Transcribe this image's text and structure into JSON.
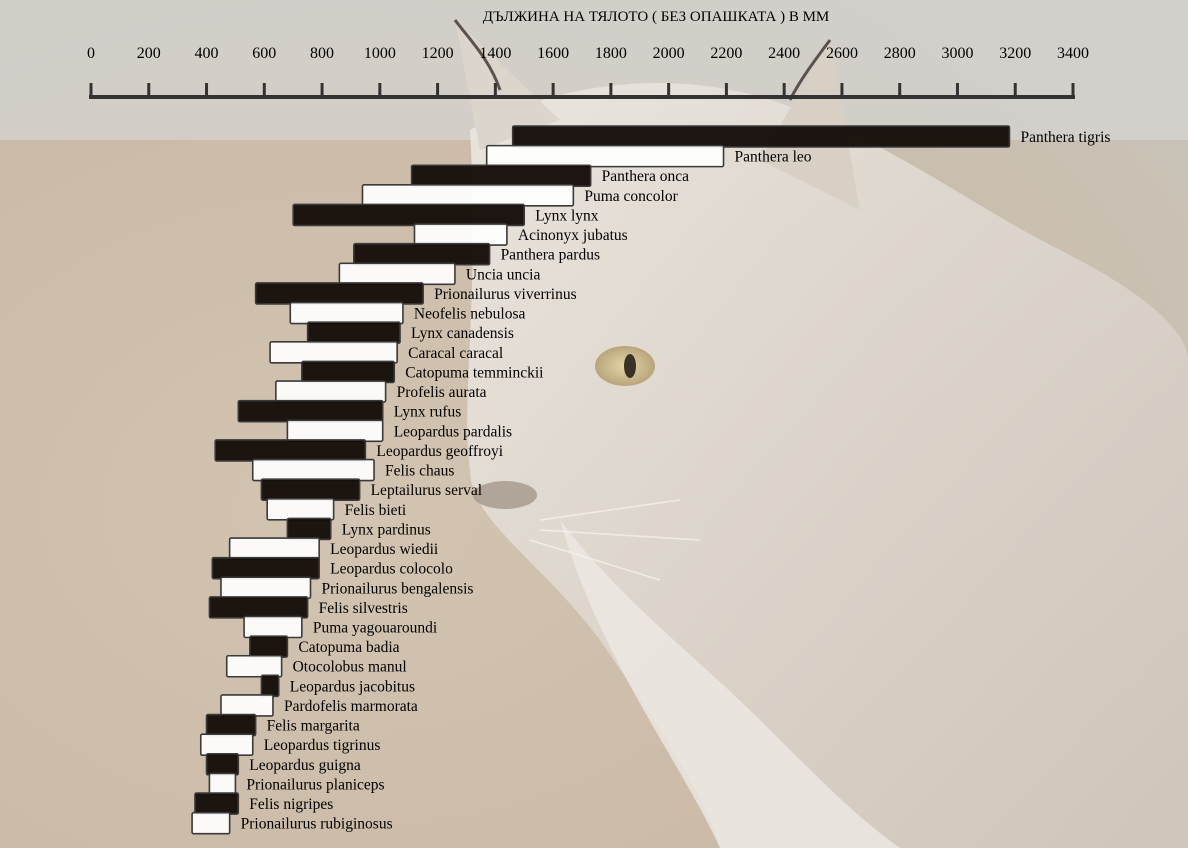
{
  "chart_data": {
    "type": "bar",
    "orientation": "horizontal-range",
    "title": "ДЪЛЖИНА НА ТЯЛОТО ( БЕЗ ОПАШКАТА ) В ММ",
    "axis": {
      "position": "top",
      "xlim": [
        0,
        3400
      ],
      "ticks": [
        0,
        200,
        400,
        600,
        800,
        1000,
        1200,
        1400,
        1600,
        1800,
        2000,
        2200,
        2400,
        2600,
        2800,
        3000,
        3200,
        3400
      ],
      "tick_labels": [
        "0",
        "200",
        "400",
        "600",
        "800",
        "1000",
        "1200",
        "1400",
        "1600",
        "1800",
        "2000",
        "2200",
        "2400",
        "2600",
        "2800",
        "3000",
        "3200",
        "3400"
      ]
    },
    "colors": {
      "dark_bar": "#140c08",
      "light_bar": "#ffffff",
      "bar_edge": "#3a3a3a",
      "text": "#000000"
    },
    "series_style": "alternating dark / light range bars, label to the right of each bar",
    "species": [
      {
        "name": "Panthera tigris",
        "min": 1460,
        "max": 3180,
        "fill": "dark"
      },
      {
        "name": "Panthera leo",
        "min": 1370,
        "max": 2190,
        "fill": "light"
      },
      {
        "name": "Panthera onca",
        "min": 1110,
        "max": 1730,
        "fill": "dark"
      },
      {
        "name": "Puma concolor",
        "min": 940,
        "max": 1670,
        "fill": "light"
      },
      {
        "name": "Lynx lynx",
        "min": 700,
        "max": 1500,
        "fill": "dark"
      },
      {
        "name": "Acinonyx jubatus",
        "min": 1120,
        "max": 1440,
        "fill": "light"
      },
      {
        "name": "Panthera pardus",
        "min": 910,
        "max": 1380,
        "fill": "dark"
      },
      {
        "name": "Uncia uncia",
        "min": 860,
        "max": 1260,
        "fill": "light"
      },
      {
        "name": "Prionailurus viverrinus",
        "min": 570,
        "max": 1150,
        "fill": "dark"
      },
      {
        "name": "Neofelis nebulosa",
        "min": 690,
        "max": 1080,
        "fill": "light"
      },
      {
        "name": "Lynx canadensis",
        "min": 750,
        "max": 1070,
        "fill": "dark"
      },
      {
        "name": "Caracal caracal",
        "min": 620,
        "max": 1060,
        "fill": "light"
      },
      {
        "name": "Catopuma temminckii",
        "min": 730,
        "max": 1050,
        "fill": "dark"
      },
      {
        "name": "Profelis aurata",
        "min": 640,
        "max": 1020,
        "fill": "light"
      },
      {
        "name": "Lynx rufus",
        "min": 510,
        "max": 1010,
        "fill": "dark"
      },
      {
        "name": "Leopardus pardalis",
        "min": 680,
        "max": 1010,
        "fill": "light"
      },
      {
        "name": "Leopardus geoffroyi",
        "min": 430,
        "max": 950,
        "fill": "dark"
      },
      {
        "name": "Felis chaus",
        "min": 560,
        "max": 980,
        "fill": "light"
      },
      {
        "name": "Leptailurus serval",
        "min": 590,
        "max": 930,
        "fill": "dark"
      },
      {
        "name": "Felis bieti",
        "min": 610,
        "max": 840,
        "fill": "light"
      },
      {
        "name": "Lynx pardinus",
        "min": 680,
        "max": 830,
        "fill": "dark"
      },
      {
        "name": "Leopardus wiedii",
        "min": 480,
        "max": 790,
        "fill": "light"
      },
      {
        "name": "Leopardus colocolo",
        "min": 420,
        "max": 790,
        "fill": "dark"
      },
      {
        "name": "Prionailurus bengalensis",
        "min": 450,
        "max": 760,
        "fill": "light"
      },
      {
        "name": "Felis silvestris",
        "min": 410,
        "max": 750,
        "fill": "dark"
      },
      {
        "name": "Puma yagouaroundi",
        "min": 530,
        "max": 730,
        "fill": "light"
      },
      {
        "name": "Catopuma badia",
        "min": 550,
        "max": 680,
        "fill": "dark"
      },
      {
        "name": "Otocolobus manul",
        "min": 470,
        "max": 660,
        "fill": "light"
      },
      {
        "name": "Leopardus jacobitus",
        "min": 590,
        "max": 650,
        "fill": "dark"
      },
      {
        "name": "Pardofelis marmorata",
        "min": 450,
        "max": 630,
        "fill": "light"
      },
      {
        "name": "Felis margarita",
        "min": 400,
        "max": 570,
        "fill": "dark"
      },
      {
        "name": "Leopardus tigrinus",
        "min": 380,
        "max": 560,
        "fill": "light"
      },
      {
        "name": "Leopardus guigna",
        "min": 400,
        "max": 510,
        "fill": "dark"
      },
      {
        "name": "Prionailurus planiceps",
        "min": 410,
        "max": 500,
        "fill": "light"
      },
      {
        "name": "Felis nigripes",
        "min": 360,
        "max": 510,
        "fill": "dark"
      },
      {
        "name": "Prionailurus rubiginosus",
        "min": 350,
        "max": 480,
        "fill": "light"
      }
    ]
  },
  "background": {
    "description_icon": "lynx-photo-background",
    "colors": {
      "fur_light": "#e6e1db",
      "fur_mid": "#cfc6bb",
      "ground": "#cdbba5",
      "eye": "#b9a57c"
    }
  }
}
